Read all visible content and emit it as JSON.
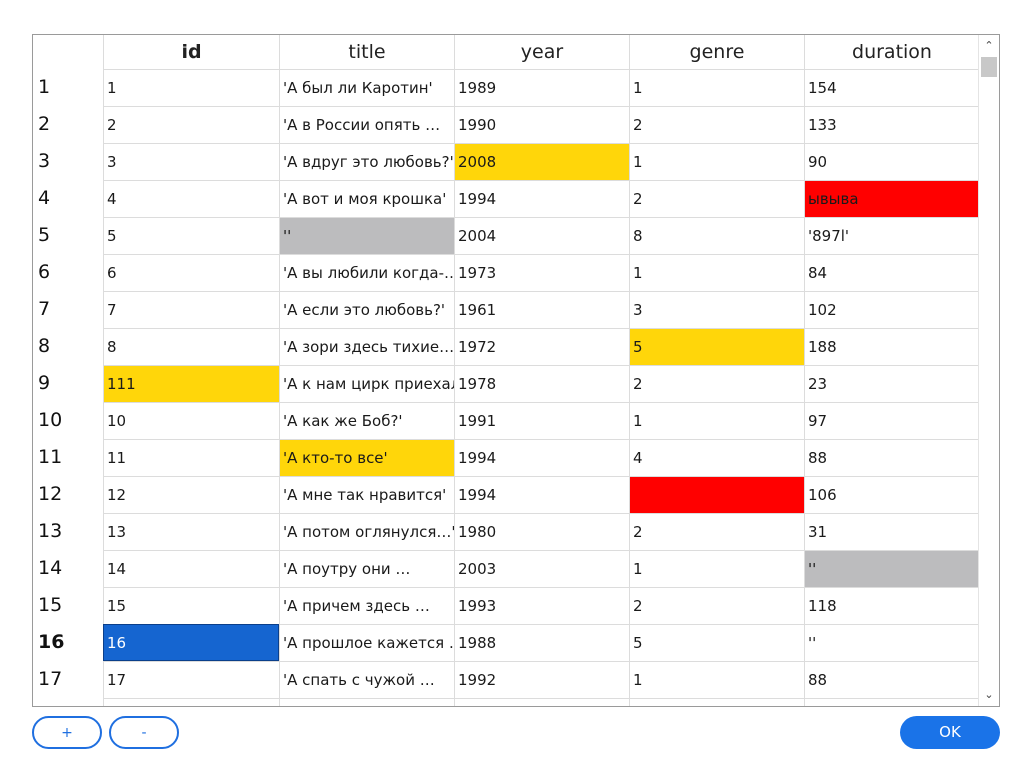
{
  "table": {
    "columns": [
      {
        "key": "id",
        "label": "id"
      },
      {
        "key": "title",
        "label": "title"
      },
      {
        "key": "year",
        "label": "year"
      },
      {
        "key": "genre",
        "label": "genre"
      },
      {
        "key": "duration",
        "label": "duration"
      }
    ],
    "highlight_colors": {
      "yellow": "#ffd60a",
      "red": "#ff0000",
      "gray": "#bcbcbe",
      "selected": "#1565d0"
    },
    "rows": [
      {
        "num": "1",
        "cells": [
          "1",
          "'А был ли Каротин'",
          "1989",
          "1",
          "154"
        ],
        "marks": [
          "",
          "",
          "",
          "",
          ""
        ]
      },
      {
        "num": "2",
        "cells": [
          "2",
          "'А в России опять …",
          "1990",
          "2",
          "133"
        ],
        "marks": [
          "",
          "",
          "",
          "",
          ""
        ]
      },
      {
        "num": "3",
        "cells": [
          "3",
          "'А вдруг это любовь?'",
          "2008",
          "1",
          "90"
        ],
        "marks": [
          "",
          "",
          "yellow",
          "",
          ""
        ]
      },
      {
        "num": "4",
        "cells": [
          "4",
          "'А вот и моя крошка'",
          "1994",
          "2",
          "ывыва"
        ],
        "marks": [
          "",
          "",
          "",
          "",
          "red"
        ]
      },
      {
        "num": "5",
        "cells": [
          "5",
          "''",
          "2004",
          "8",
          "'897l'"
        ],
        "marks": [
          "",
          "gray",
          "",
          "",
          ""
        ]
      },
      {
        "num": "6",
        "cells": [
          "6",
          "'А вы любили когда-…",
          "1973",
          "1",
          "84"
        ],
        "marks": [
          "",
          "",
          "",
          "",
          ""
        ]
      },
      {
        "num": "7",
        "cells": [
          "7",
          "'А если это любовь?'",
          "1961",
          "3",
          "102"
        ],
        "marks": [
          "",
          "",
          "",
          "",
          ""
        ]
      },
      {
        "num": "8",
        "cells": [
          "8",
          "'А зори здесь тихие…'",
          "1972",
          "5",
          "188"
        ],
        "marks": [
          "",
          "",
          "",
          "yellow",
          ""
        ]
      },
      {
        "num": "9",
        "cells": [
          "111",
          "'А к нам цирк приехал'",
          "1978",
          "2",
          "23"
        ],
        "marks": [
          "yellow",
          "",
          "",
          "",
          ""
        ]
      },
      {
        "num": "10",
        "cells": [
          "10",
          "'А как же Боб?'",
          "1991",
          "1",
          "97"
        ],
        "marks": [
          "",
          "",
          "",
          "",
          ""
        ]
      },
      {
        "num": "11",
        "cells": [
          "11",
          "'А кто-то все'",
          "1994",
          "4",
          "88"
        ],
        "marks": [
          "",
          "yellow",
          "",
          "",
          ""
        ]
      },
      {
        "num": "12",
        "cells": [
          "12",
          "'А мне так нравится'",
          "1994",
          "",
          "106"
        ],
        "marks": [
          "",
          "",
          "",
          "red",
          ""
        ]
      },
      {
        "num": "13",
        "cells": [
          "13",
          "'А потом оглянулся…'",
          "1980",
          "2",
          "31"
        ],
        "marks": [
          "",
          "",
          "",
          "",
          ""
        ]
      },
      {
        "num": "14",
        "cells": [
          "14",
          "'А поутру они …",
          "2003",
          "1",
          "''"
        ],
        "marks": [
          "",
          "",
          "",
          "",
          "gray"
        ]
      },
      {
        "num": "15",
        "cells": [
          "15",
          "'А причем здесь …",
          "1993",
          "2",
          "118"
        ],
        "marks": [
          "",
          "",
          "",
          "",
          ""
        ]
      },
      {
        "num": "16",
        "cells": [
          "16",
          "'А прошлое кажется …",
          "1988",
          "5",
          "''"
        ],
        "marks": [
          "selected",
          "",
          "",
          "",
          ""
        ]
      },
      {
        "num": "17",
        "cells": [
          "17",
          "'А спать с чужой …",
          "1992",
          "1",
          "88"
        ],
        "marks": [
          "",
          "",
          "",
          "",
          ""
        ]
      },
      {
        "num": "",
        "cells": [
          "",
          "",
          "",
          "",
          ""
        ],
        "marks": [
          "",
          "",
          "",
          "",
          ""
        ]
      }
    ]
  },
  "scrollbar": {
    "up_icon": "chevron-up-icon",
    "down_icon": "chevron-down-icon"
  },
  "buttons": {
    "add_label": "+",
    "remove_label": "-",
    "ok_label": "OK"
  }
}
